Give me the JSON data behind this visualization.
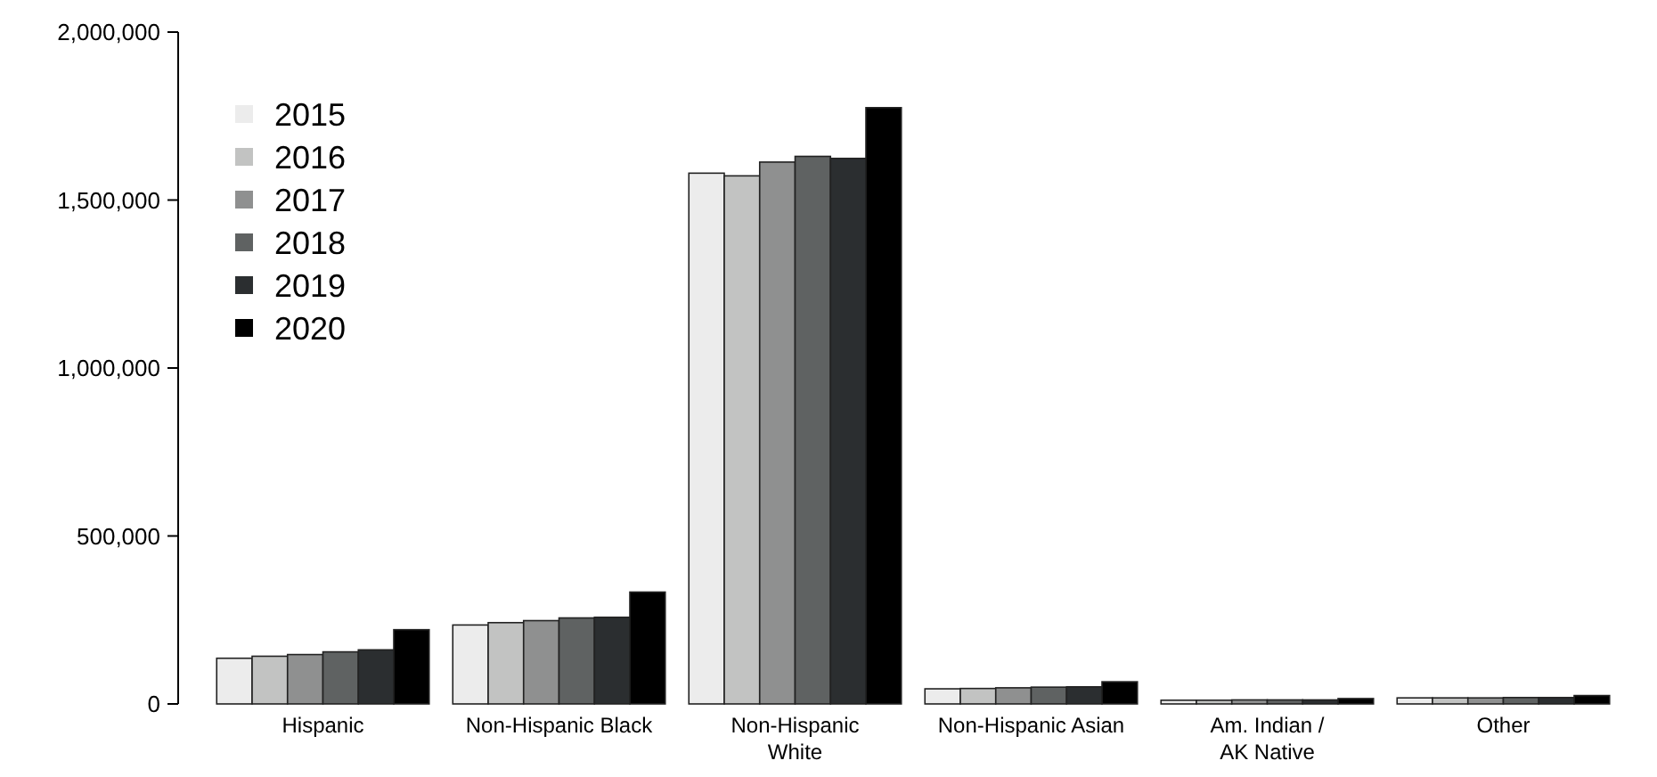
{
  "chart_data": {
    "type": "bar",
    "categories": [
      "Hispanic",
      "Non-Hispanic Black",
      "Non-Hispanic\nWhite",
      "Non-Hispanic Asian",
      "Am. Indian /\nAK Native",
      "Other"
    ],
    "series": [
      {
        "name": "2015",
        "color": "#ececec",
        "values": [
          136000,
          235000,
          1580000,
          45000,
          11000,
          18000
        ]
      },
      {
        "name": "2016",
        "color": "#c2c3c2",
        "values": [
          142000,
          242000,
          1572000,
          46000,
          11000,
          18000
        ]
      },
      {
        "name": "2017",
        "color": "#8f9090",
        "values": [
          147000,
          248000,
          1613000,
          48000,
          12000,
          18000
        ]
      },
      {
        "name": "2018",
        "color": "#5f6262",
        "values": [
          155000,
          256000,
          1630000,
          50000,
          12000,
          19000
        ]
      },
      {
        "name": "2019",
        "color": "#2b2e30",
        "values": [
          161000,
          258000,
          1624000,
          51000,
          12000,
          19000
        ]
      },
      {
        "name": "2020",
        "color": "#000000",
        "values": [
          221000,
          333000,
          1775000,
          66000,
          16000,
          25000
        ]
      }
    ],
    "ylim": [
      0,
      2000000
    ],
    "yticks": [
      {
        "value": 0,
        "label": "0"
      },
      {
        "value": 500000,
        "label": "500,000"
      },
      {
        "value": 1000000,
        "label": "1,000,000"
      },
      {
        "value": 1500000,
        "label": "1,500,000"
      },
      {
        "value": 2000000,
        "label": "2,000,000"
      }
    ],
    "legend": "top left",
    "grid": false
  }
}
